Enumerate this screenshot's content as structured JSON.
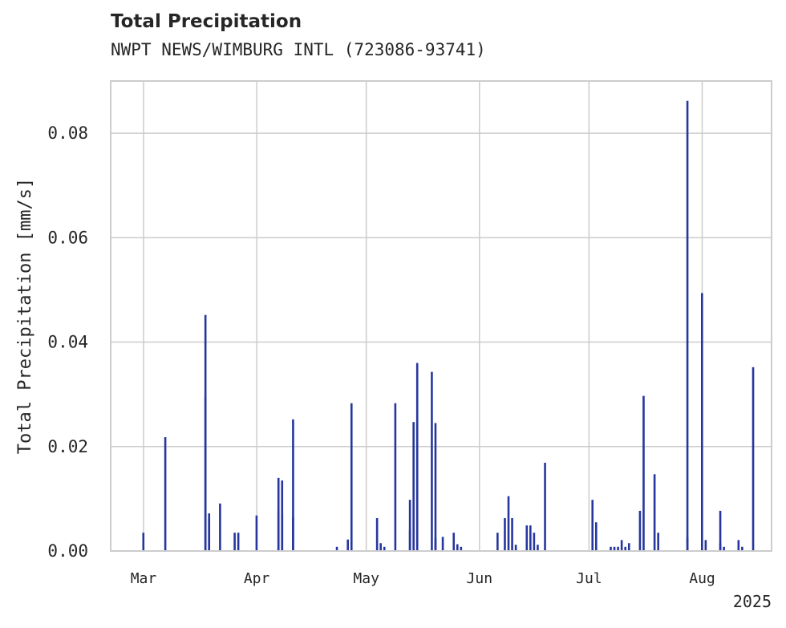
{
  "chart_data": {
    "type": "bar",
    "title": "Total Precipitation",
    "subtitle": "NWPT NEWS/WIMBURG INTL (723086-93741)",
    "ylabel": "Total Precipitation [mm/s]",
    "xlabel": "",
    "ylim": [
      0,
      0.09
    ],
    "xlim": [
      "2025-02-20",
      "2025-08-20"
    ],
    "yticks": [
      0.0,
      0.02,
      0.04,
      0.06,
      0.08
    ],
    "ytick_labels": [
      "0.00",
      "0.02",
      "0.04",
      "0.06",
      "0.08"
    ],
    "xticks": [
      "2025-03-01",
      "2025-04-01",
      "2025-05-01",
      "2025-06-01",
      "2025-07-01",
      "2025-08-01"
    ],
    "xtick_labels": [
      "Mar",
      "Apr",
      "May",
      "Jun",
      "Jul",
      "Aug"
    ],
    "x_offset_label": "2025",
    "grid": true,
    "legend": "none",
    "bar_color": "#26369e",
    "series": [
      {
        "x": [
          "2025-03-01",
          "2025-03-07",
          "2025-03-18",
          "2025-03-18",
          "2025-03-19",
          "2025-03-19",
          "2025-03-22",
          "2025-03-26",
          "2025-03-27",
          "2025-04-01",
          "2025-04-07",
          "2025-04-07",
          "2025-04-08",
          "2025-04-08",
          "2025-04-11",
          "2025-04-11",
          "2025-04-23",
          "2025-04-26",
          "2025-04-27",
          "2025-05-04",
          "2025-05-05",
          "2025-05-06",
          "2025-05-09",
          "2025-05-13",
          "2025-05-13",
          "2025-05-14",
          "2025-05-15",
          "2025-05-15",
          "2025-05-19",
          "2025-05-20",
          "2025-05-20",
          "2025-05-22",
          "2025-05-25",
          "2025-05-26",
          "2025-05-27",
          "2025-06-06",
          "2025-06-08",
          "2025-06-09",
          "2025-06-10",
          "2025-06-11",
          "2025-06-14",
          "2025-06-15",
          "2025-06-16",
          "2025-06-17",
          "2025-06-19",
          "2025-07-02",
          "2025-07-03",
          "2025-07-07",
          "2025-07-08",
          "2025-07-09",
          "2025-07-10",
          "2025-07-11",
          "2025-07-12",
          "2025-07-15",
          "2025-07-16",
          "2025-07-19",
          "2025-07-20",
          "2025-07-28",
          "2025-07-28",
          "2025-08-01",
          "2025-08-02",
          "2025-08-06",
          "2025-08-06",
          "2025-08-07",
          "2025-08-11",
          "2025-08-12",
          "2025-08-15"
        ],
        "values": [
          0.0035,
          0.0218,
          0.0452,
          0.0295,
          0.0072,
          0.0062,
          0.0091,
          0.0035,
          0.0035,
          0.0068,
          0.0077,
          0.014,
          0.0135,
          0.007,
          0.0252,
          0.0065,
          0.0008,
          0.0022,
          0.0283,
          0.0063,
          0.0015,
          0.0008,
          0.0283,
          0.0098,
          0.004,
          0.0247,
          0.036,
          0.0245,
          0.0343,
          0.0245,
          0.0025,
          0.0027,
          0.0035,
          0.0013,
          0.0008,
          0.0035,
          0.0063,
          0.0105,
          0.0063,
          0.0012,
          0.0049,
          0.0049,
          0.0035,
          0.0012,
          0.0169,
          0.0098,
          0.0055,
          0.0008,
          0.0008,
          0.0008,
          0.0021,
          0.0008,
          0.0015,
          0.0077,
          0.0297,
          0.0147,
          0.0035,
          0.0862,
          0.0025,
          0.0494,
          0.0021,
          0.0077,
          0.0015,
          0.0008,
          0.0021,
          0.0008,
          0.0352
        ]
      }
    ]
  }
}
